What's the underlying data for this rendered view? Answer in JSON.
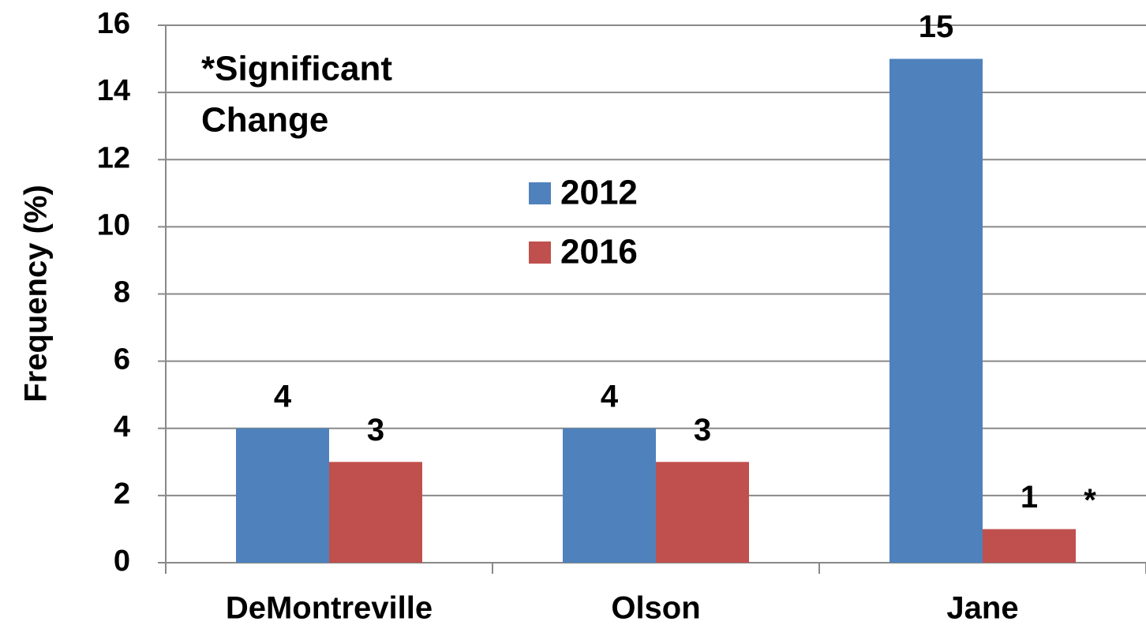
{
  "chart_data": {
    "type": "bar",
    "y_label": "Frequency (%)",
    "annotation": [
      "*Significant",
      "Change"
    ],
    "significance_marker": "*",
    "categories": [
      "DeMontreville",
      "Olson",
      "Jane"
    ],
    "series": [
      {
        "name": "2012",
        "color": "#4f81bd",
        "values": [
          4,
          4,
          15
        ]
      },
      {
        "name": "2016",
        "color": "#c0504d",
        "values": [
          3,
          3,
          1
        ]
      }
    ],
    "ylim": [
      0,
      16
    ],
    "yticks": [
      0,
      2,
      4,
      6,
      8,
      10,
      12,
      14,
      16
    ],
    "grid": true
  }
}
